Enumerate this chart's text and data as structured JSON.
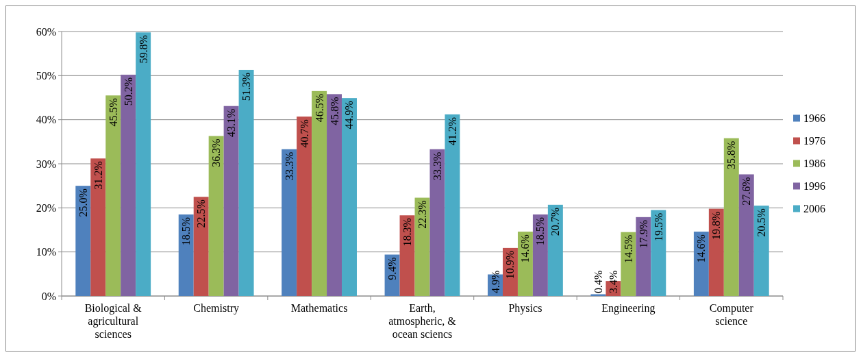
{
  "chart_data": {
    "type": "bar",
    "categories": [
      "Biological & agricultural sciences",
      "Chemistry",
      "Mathematics",
      "Earth, atmospheric, & ocean sciencs",
      "Physics",
      "Engineering",
      "Computer science"
    ],
    "series": [
      {
        "name": "1966",
        "color": "#4f81bd",
        "values": [
          25.0,
          18.5,
          33.3,
          9.4,
          4.9,
          0.4,
          14.6
        ],
        "value_labels": [
          "25.0%",
          "18.5%",
          "33.3%",
          "9.4%",
          "4.9%",
          "0.4%",
          "14.6%"
        ]
      },
      {
        "name": "1976",
        "color": "#c0504d",
        "values": [
          31.2,
          22.5,
          40.7,
          18.3,
          10.9,
          3.4,
          19.8
        ],
        "value_labels": [
          "31.2%",
          "22.5%",
          "40.7%",
          "18.3%",
          "10.9%",
          "3.4%",
          "19.8%"
        ]
      },
      {
        "name": "1986",
        "color": "#9bbb59",
        "values": [
          45.5,
          36.3,
          46.5,
          22.3,
          14.6,
          14.5,
          35.8
        ],
        "value_labels": [
          "45.5%",
          "36.3%",
          "46.5%",
          "22.3%",
          "14.6%",
          "14.5%",
          "35.8%"
        ]
      },
      {
        "name": "1996",
        "color": "#8064a2",
        "values": [
          50.2,
          43.1,
          45.8,
          33.3,
          18.5,
          17.9,
          27.6
        ],
        "value_labels": [
          "50.2%",
          "43.1%",
          "45.8%",
          "33.3%",
          "18.5%",
          "17.9%",
          "27.6%"
        ]
      },
      {
        "name": "2006",
        "color": "#4bacc6",
        "values": [
          59.8,
          51.3,
          44.9,
          41.2,
          20.7,
          19.5,
          20.5
        ],
        "value_labels": [
          "59.8%",
          "51.3%",
          "44.9%",
          "41.2%",
          "20.7%",
          "19.5%",
          "20.5%"
        ]
      }
    ],
    "ylim": [
      0,
      60
    ],
    "yticks": [
      {
        "value": 0,
        "label": "0%"
      },
      {
        "value": 10,
        "label": "10%"
      },
      {
        "value": 20,
        "label": "20%"
      },
      {
        "value": 30,
        "label": "30%"
      },
      {
        "value": 40,
        "label": "40%"
      },
      {
        "value": 50,
        "label": "50%"
      },
      {
        "value": 60,
        "label": "60%"
      }
    ],
    "grid": "y",
    "legend": "right"
  }
}
